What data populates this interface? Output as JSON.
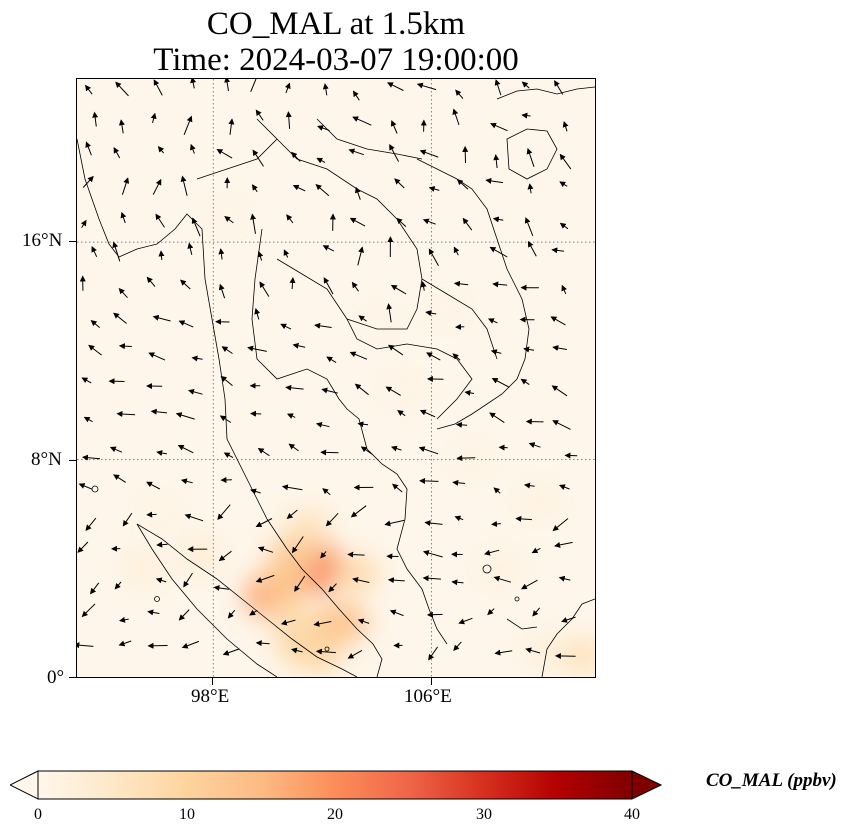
{
  "title": {
    "line1": "CO_MAL at 1.5km",
    "line2": "Time: 2024-03-07 19:00:00"
  },
  "map": {
    "extent": {
      "lon_min": 93,
      "lon_max": 112,
      "lat_min": 0,
      "lat_max": 22
    },
    "gridlines": {
      "lons": [
        98,
        106
      ],
      "lats": [
        8,
        16
      ],
      "style": "dotted",
      "color": "#808080"
    },
    "lat_ticks": [
      {
        "value": 16,
        "label": "16°N"
      },
      {
        "value": 8,
        "label": "8°N"
      },
      {
        "value": 0,
        "label": "0°"
      }
    ],
    "lon_ticks": [
      {
        "value": 98,
        "label": "98°E"
      },
      {
        "value": 106,
        "label": "106°E"
      }
    ],
    "field": "CO_MAL",
    "background_color": "#fef6ea",
    "coast_color": "#000000",
    "wind_arrows": true,
    "hotspots": [
      {
        "lon": 101.7,
        "lat": 4.0,
        "value": 22
      },
      {
        "lon": 100.2,
        "lat": 3.0,
        "value": 18
      },
      {
        "lon": 100.6,
        "lat": 3.5,
        "value": 13
      },
      {
        "lon": 101.0,
        "lat": 4.5,
        "value": 12
      },
      {
        "lon": 102.7,
        "lat": 2.0,
        "value": 14
      },
      {
        "lon": 102.0,
        "lat": 1.5,
        "value": 12
      },
      {
        "lon": 101.2,
        "lat": 1.2,
        "value": 10
      },
      {
        "lon": 101.8,
        "lat": 0.8,
        "value": 9
      },
      {
        "lon": 103.2,
        "lat": 3.8,
        "value": 9
      },
      {
        "lon": 100.8,
        "lat": 2.2,
        "value": 8
      },
      {
        "lon": 101.5,
        "lat": 5.5,
        "value": 7
      },
      {
        "lon": 97.5,
        "lat": 4.5,
        "value": 4
      },
      {
        "lon": 95.5,
        "lat": 4.0,
        "value": 3
      },
      {
        "lon": 111.5,
        "lat": 0.8,
        "value": 7
      },
      {
        "lon": 110.2,
        "lat": 1.0,
        "value": 3
      },
      {
        "lon": 108.5,
        "lat": 4.0,
        "value": 2
      },
      {
        "lon": 110.0,
        "lat": 6.5,
        "value": 2
      },
      {
        "lon": 107.5,
        "lat": 8.0,
        "value": 1.5
      },
      {
        "lon": 105.0,
        "lat": 10.5,
        "value": 1.5
      },
      {
        "lon": 104.0,
        "lat": 13.0,
        "value": 1
      },
      {
        "lon": 106.5,
        "lat": 13.5,
        "value": 1
      },
      {
        "lon": 98.5,
        "lat": 17.0,
        "value": 1
      },
      {
        "lon": 96.0,
        "lat": 6.0,
        "value": 1.5
      }
    ]
  },
  "colorbar": {
    "min": 0,
    "max": 40,
    "ticks": [
      "0",
      "10",
      "20",
      "30",
      "40"
    ],
    "label": "CO_MAL (ppbv)",
    "colormap": "OrRd",
    "stops": [
      "#fff7ec",
      "#fee8c8",
      "#fdd49e",
      "#fdbb84",
      "#fc8d59",
      "#ef6548",
      "#d7301f",
      "#b30000",
      "#7f0000"
    ]
  }
}
